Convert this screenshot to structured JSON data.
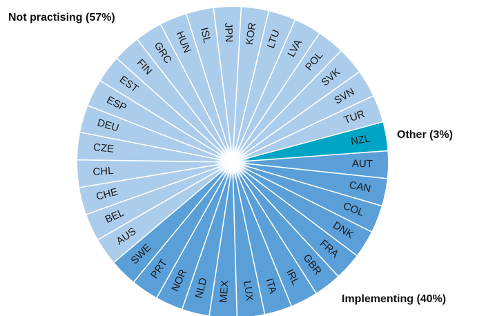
{
  "chart_data": {
    "type": "pie",
    "series": [
      {
        "name": "Other (3%)",
        "value": 3,
        "color": "#00a5c6",
        "categories": [
          "NZL"
        ]
      },
      {
        "name": "Implementing (40%)",
        "value": 40,
        "color": "#5a9fd8",
        "categories": [
          "AUT",
          "CAN",
          "COL",
          "DNK",
          "FRA",
          "GBR",
          "IRL",
          "ITA",
          "LUX",
          "MEX",
          "NLD",
          "NOR",
          "PRT",
          "SWE"
        ]
      },
      {
        "name": "Not practising (57%)",
        "value": 57,
        "color": "#abcdeb",
        "categories": [
          "AUS",
          "BEL",
          "CHE",
          "CHL",
          "CZE",
          "DEU",
          "ESP",
          "EST",
          "FIN",
          "GRC",
          "HUN",
          "ISL",
          "JPN",
          "KOR",
          "LTU",
          "LVA",
          "POL",
          "SVK",
          "SVN",
          "TUR"
        ]
      }
    ]
  }
}
